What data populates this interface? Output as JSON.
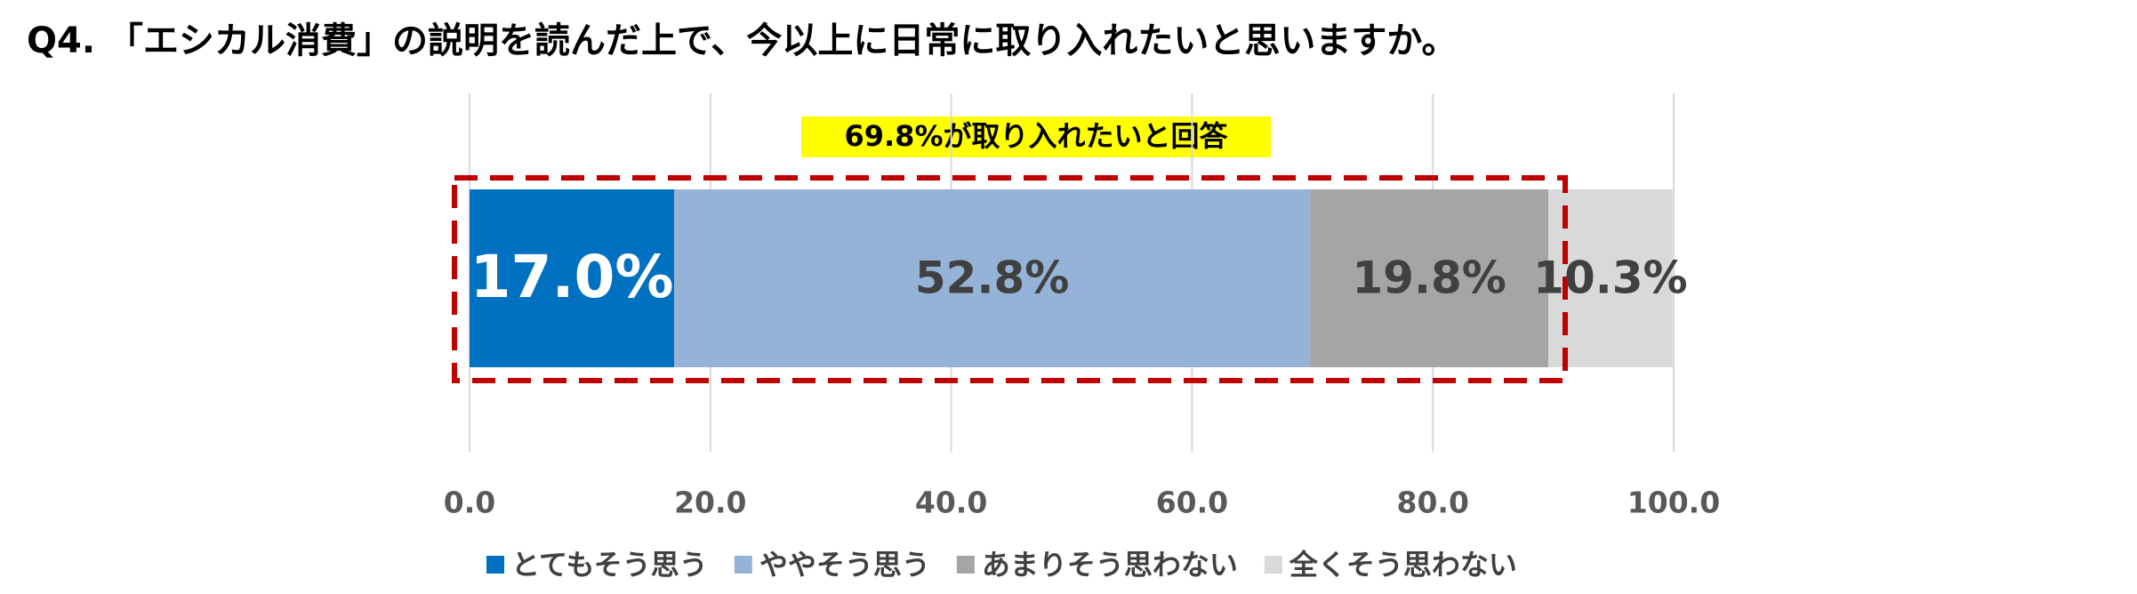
{
  "chart_data": {
    "type": "stacked_bar_horizontal",
    "title": "Q4. 「エシカル消費」の説明を読んだ上で、今以上に日常に取り入れたいと思いますか。",
    "annotation": "69.8%が取り入れたいと回答",
    "categories": [
      null
    ],
    "series": [
      {
        "name": "とてもそう思う",
        "color": "#0070c0",
        "values": [
          17.0
        ],
        "value_labels": [
          "17.0%"
        ]
      },
      {
        "name": "ややそう思う",
        "color": "#95b3d7",
        "values": [
          52.8
        ],
        "value_labels": [
          "52.8%"
        ]
      },
      {
        "name": "あまりそう思わない",
        "color": "#a5a5a5",
        "values": [
          19.8
        ],
        "value_labels": [
          "19.8%"
        ]
      },
      {
        "name": "全くそう思わない",
        "color": "#d9d9d9",
        "values": [
          10.3
        ],
        "value_labels": [
          "10.3%"
        ]
      }
    ],
    "xlim": [
      0,
      100
    ],
    "xticks": [
      {
        "value": 0,
        "label": "0.0"
      },
      {
        "value": 20,
        "label": "20.0"
      },
      {
        "value": 40,
        "label": "40.0"
      },
      {
        "value": 60,
        "label": "60.0"
      },
      {
        "value": 80,
        "label": "80.0"
      },
      {
        "value": 100,
        "label": "100.0"
      }
    ],
    "grid": true,
    "legend": "bottom"
  }
}
